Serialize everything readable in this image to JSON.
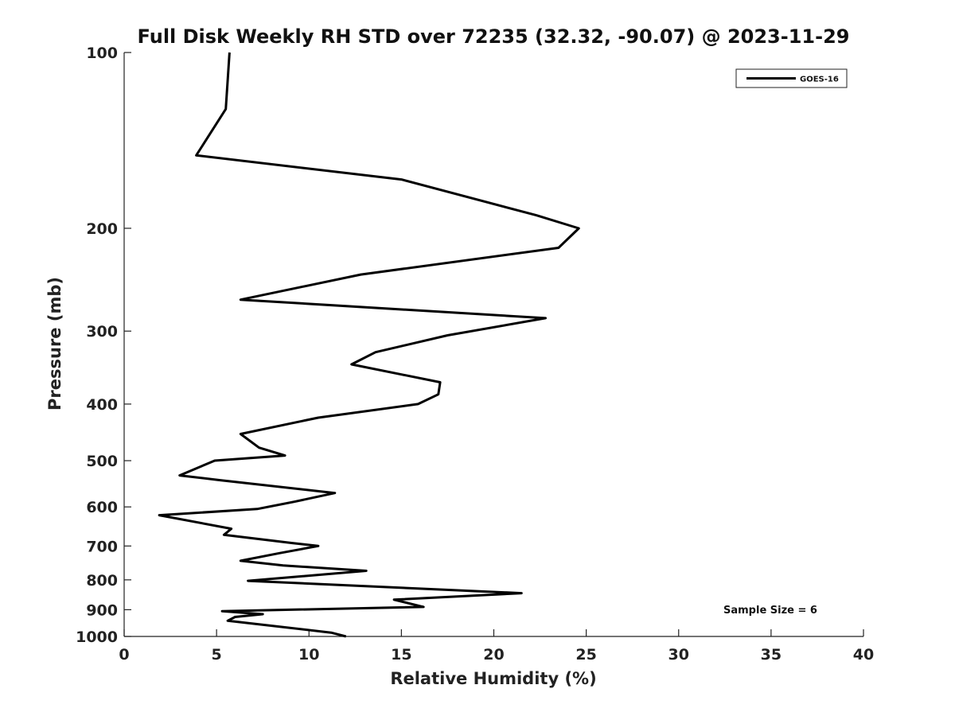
{
  "chart_data": {
    "type": "line",
    "title": "Full Disk Weekly RH STD over 72235 (32.32, -90.07) @ 2023-11-29",
    "xlabel": "Relative Humidity (%)",
    "ylabel": "Pressure (mb)",
    "xlim": [
      0,
      40
    ],
    "ylim": [
      1000,
      100
    ],
    "y_scale": "log",
    "y_inverted": true,
    "grid": false,
    "x_ticks": [
      0,
      5,
      10,
      15,
      20,
      25,
      30,
      35,
      40
    ],
    "x_tick_labels": [
      "0",
      "5",
      "10",
      "15",
      "20",
      "25",
      "30",
      "35",
      "40"
    ],
    "y_ticks": [
      100,
      200,
      300,
      400,
      500,
      600,
      700,
      800,
      900,
      1000
    ],
    "y_tick_labels": [
      "100",
      "200",
      "300",
      "400",
      "500",
      "600",
      "700",
      "800",
      "900",
      "1000"
    ],
    "legend": {
      "placement": "top-right",
      "entries": [
        "GOES-16"
      ]
    },
    "annotation": "Sample Size = 6",
    "series": [
      {
        "name": "GOES-16",
        "color": "#000000",
        "x": [
          5.7,
          5.5,
          3.9,
          15.0,
          22.3,
          24.6,
          23.5,
          12.8,
          6.3,
          22.8,
          17.5,
          13.6,
          12.3,
          17.1,
          17.0,
          15.9,
          10.5,
          6.3,
          7.3,
          8.7,
          4.9,
          3.0,
          5.2,
          11.4,
          9.2,
          7.2,
          1.9,
          5.8,
          5.4,
          9.1,
          10.5,
          8.4,
          6.3,
          8.6,
          13.1,
          6.7,
          21.5,
          14.6,
          16.2,
          5.3,
          7.5,
          6.0,
          5.6,
          11.2,
          12.0
        ],
        "y": [
          100,
          125,
          150,
          165,
          190,
          200,
          216,
          240,
          265,
          285,
          305,
          326,
          342,
          367,
          385,
          400,
          422,
          450,
          475,
          490,
          500,
          530,
          540,
          568,
          588,
          605,
          620,
          654,
          670,
          692,
          700,
          720,
          742,
          756,
          772,
          803,
          843,
          865,
          890,
          905,
          916,
          926,
          940,
          985,
          1000
        ]
      }
    ]
  }
}
